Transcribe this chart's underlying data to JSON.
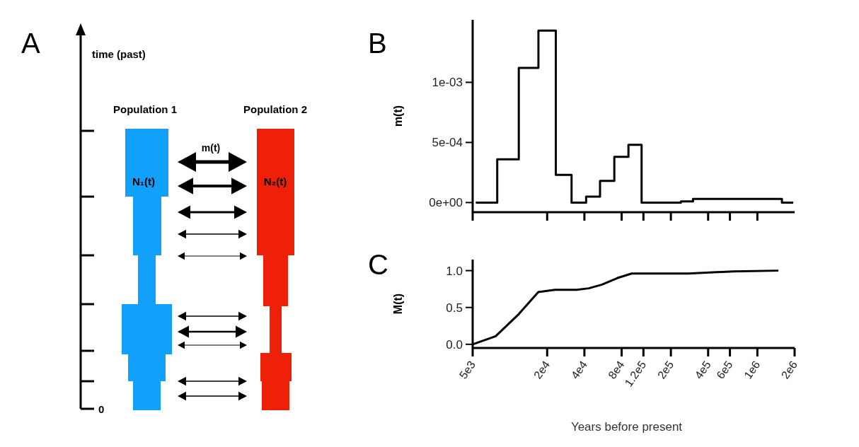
{
  "chart_data": [
    {
      "type": "other",
      "title": "A",
      "annotations": [
        "time (past)",
        "Population 1",
        "Population 2",
        "m(t)",
        "N₁(t)",
        "N₂(t)",
        "0"
      ]
    },
    {
      "type": "step",
      "title": "B",
      "ylabel": "m(t)",
      "log": "x",
      "xlim": [
        5000,
        2000000
      ],
      "xticks": [
        {
          "value": 5000,
          "label": null
        },
        {
          "value": 20000,
          "label": null
        },
        {
          "value": 40000,
          "label": null
        },
        {
          "value": 80000,
          "label": null
        },
        {
          "value": 120000,
          "label": null
        },
        {
          "value": 200000,
          "label": null
        },
        {
          "value": 400000,
          "label": null
        },
        {
          "value": 600000,
          "label": null
        },
        {
          "value": 1000000,
          "label": null
        }
      ],
      "ylim": [
        -8e-05,
        0.00152
      ],
      "yticks": [
        {
          "value": 0,
          "label": "0e+00"
        },
        {
          "value": 0.0005,
          "label": "5e-04"
        },
        {
          "value": 0.001,
          "label": "1e-03"
        }
      ],
      "tick_labels": "y",
      "color": "#000000",
      "x": [
        5300,
        7900,
        11800,
        17000,
        23500,
        31500,
        41300,
        53500,
        69800,
        90800,
        116000,
        241000,
        302000,
        1410000,
        1580000,
        1950000
      ],
      "values": [
        0,
        0,
        0.00036,
        0.00112,
        0.00143,
        0.00023,
        0,
        5e-05,
        0.00018,
        0.00038,
        0.00048,
        0,
        1e-05,
        3e-05,
        3e-05,
        0
      ]
    },
    {
      "type": "line",
      "title": "C",
      "xlabel": "Years before present",
      "ylabel": "M(t)",
      "log": "x",
      "xlim": [
        5000,
        2000000
      ],
      "xticks": [
        {
          "value": 5000,
          "label": "5e3"
        },
        {
          "value": 20000,
          "label": "2e4"
        },
        {
          "value": 40000,
          "label": "4e4"
        },
        {
          "value": 80000,
          "label": "8e4"
        },
        {
          "value": 120000,
          "label": "1.2e5"
        },
        {
          "value": 200000,
          "label": "2e5"
        },
        {
          "value": 400000,
          "label": "4e5"
        },
        {
          "value": 600000,
          "label": "6e5"
        },
        {
          "value": 1000000,
          "label": "1e6"
        },
        {
          "value": 2000000,
          "label": "2e6"
        }
      ],
      "ylim": [
        -0.05,
        1.15
      ],
      "yticks": [
        {
          "value": 0,
          "label": "0.0"
        },
        {
          "value": 0.5,
          "label": "0.5"
        },
        {
          "value": 1,
          "label": "1.0"
        }
      ],
      "marker": "none",
      "line_style": "solid",
      "color": "#000000",
      "x": [
        5000,
        7670,
        11800,
        17000,
        23100,
        34600,
        43400,
        55500,
        74100,
        96400,
        276000,
        640000,
        1480000
      ],
      "values": [
        0,
        0.11,
        0.41,
        0.71,
        0.74,
        0.74,
        0.76,
        0.81,
        0.9,
        0.96,
        0.96,
        0.99,
        1
      ]
    }
  ]
}
